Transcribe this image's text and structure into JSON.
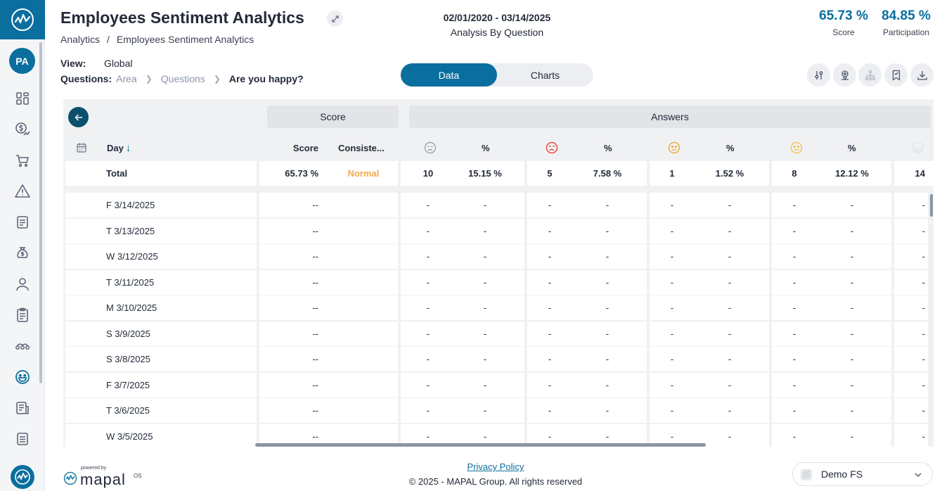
{
  "header": {
    "title": "Employees Sentiment Analytics",
    "breadcrumb": [
      "Analytics",
      "/",
      "Employees Sentiment Analytics"
    ],
    "date_range": "02/01/2020 - 03/14/2025",
    "analysis_by": "Analysis By Question",
    "score": {
      "value": "65.73 %",
      "label": "Score"
    },
    "participation": {
      "value": "84.85 %",
      "label": "Participation"
    }
  },
  "user": {
    "initials": "PA"
  },
  "filters": {
    "view_label": "View:",
    "view_value": "Global",
    "questions_label": "Questions:",
    "path": [
      "Area",
      "Questions"
    ],
    "current": "Are you happy?"
  },
  "toggle": {
    "data": "Data",
    "charts": "Charts",
    "active": "Data"
  },
  "table": {
    "groups": {
      "score": "Score",
      "answers": "Answers"
    },
    "columns": {
      "day": "Day",
      "score": "Score",
      "consistency": "Consiste...",
      "pct": "%"
    },
    "total": {
      "label": "Total",
      "score": "65.73 %",
      "consistency": "Normal",
      "a1_count": "10",
      "a1_pct": "15.15 %",
      "a2_count": "5",
      "a2_pct": "7.58 %",
      "a3_count": "1",
      "a3_pct": "1.52 %",
      "a4_count": "8",
      "a4_pct": "12.12 %",
      "a5_count": "14"
    },
    "rows": [
      {
        "day": "F 3/14/2025",
        "score": "--",
        "v": "-"
      },
      {
        "day": "T 3/13/2025",
        "score": "--",
        "v": "-"
      },
      {
        "day": "W 3/12/2025",
        "score": "--",
        "v": "-"
      },
      {
        "day": "T 3/11/2025",
        "score": "--",
        "v": "-"
      },
      {
        "day": "M 3/10/2025",
        "score": "--",
        "v": "-"
      },
      {
        "day": "S 3/9/2025",
        "score": "--",
        "v": "-"
      },
      {
        "day": "S 3/8/2025",
        "score": "--",
        "v": "-"
      },
      {
        "day": "F 3/7/2025",
        "score": "--",
        "v": "-"
      },
      {
        "day": "T 3/6/2025",
        "score": "--",
        "v": "-"
      },
      {
        "day": "W 3/5/2025",
        "score": "--",
        "v": "-"
      }
    ]
  },
  "footer": {
    "powered_by": "powered by",
    "brand": "mapal",
    "brand_suffix": "OS",
    "privacy": "Privacy Policy",
    "copyright": "© 2025 - MAPAL Group. All rights reserved",
    "company": "Demo FS"
  },
  "colors": {
    "primary": "#0a6e9e",
    "normal": "#f2a94a",
    "angry": "#e0332e",
    "worried": "#f2a030",
    "smile": "#f5c03c"
  }
}
